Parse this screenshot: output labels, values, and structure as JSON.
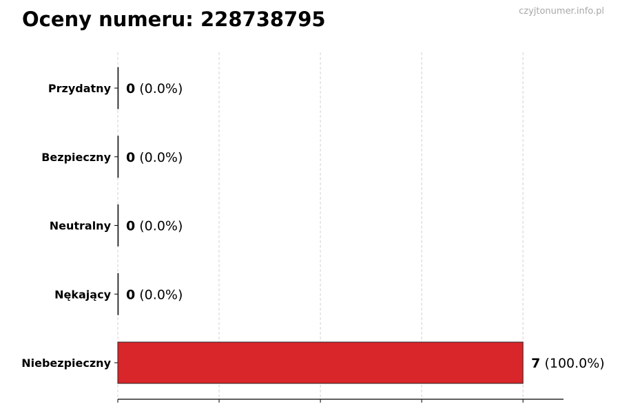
{
  "title": "Oceny numeru: 228738795",
  "watermark": "czyjtonumer.info.pl",
  "chart_data": {
    "type": "bar",
    "orientation": "horizontal",
    "title": "Oceny numeru: 228738795",
    "categories": [
      "Przydatny",
      "Bezpieczny",
      "Neutralny",
      "Nękający",
      "Niebezpieczny"
    ],
    "values": [
      0,
      0,
      0,
      0,
      7
    ],
    "data_labels": [
      {
        "count": "0",
        "pct": "(0.0%)"
      },
      {
        "count": "0",
        "pct": "(0.0%)"
      },
      {
        "count": "0",
        "pct": "(0.0%)"
      },
      {
        "count": "0",
        "pct": "(0.0%)"
      },
      {
        "count": "7",
        "pct": "(100.0%)"
      }
    ],
    "colors": [
      "#d9262a",
      "#d9262a",
      "#d9262a",
      "#d9262a",
      "#d9262a"
    ],
    "xlim": [
      0,
      7.7
    ],
    "xticks": [
      0,
      1.75,
      3.5,
      5.25,
      7
    ],
    "xtick_labels_shown": false,
    "grid": "x-dashed",
    "xlabel": "",
    "ylabel": ""
  }
}
